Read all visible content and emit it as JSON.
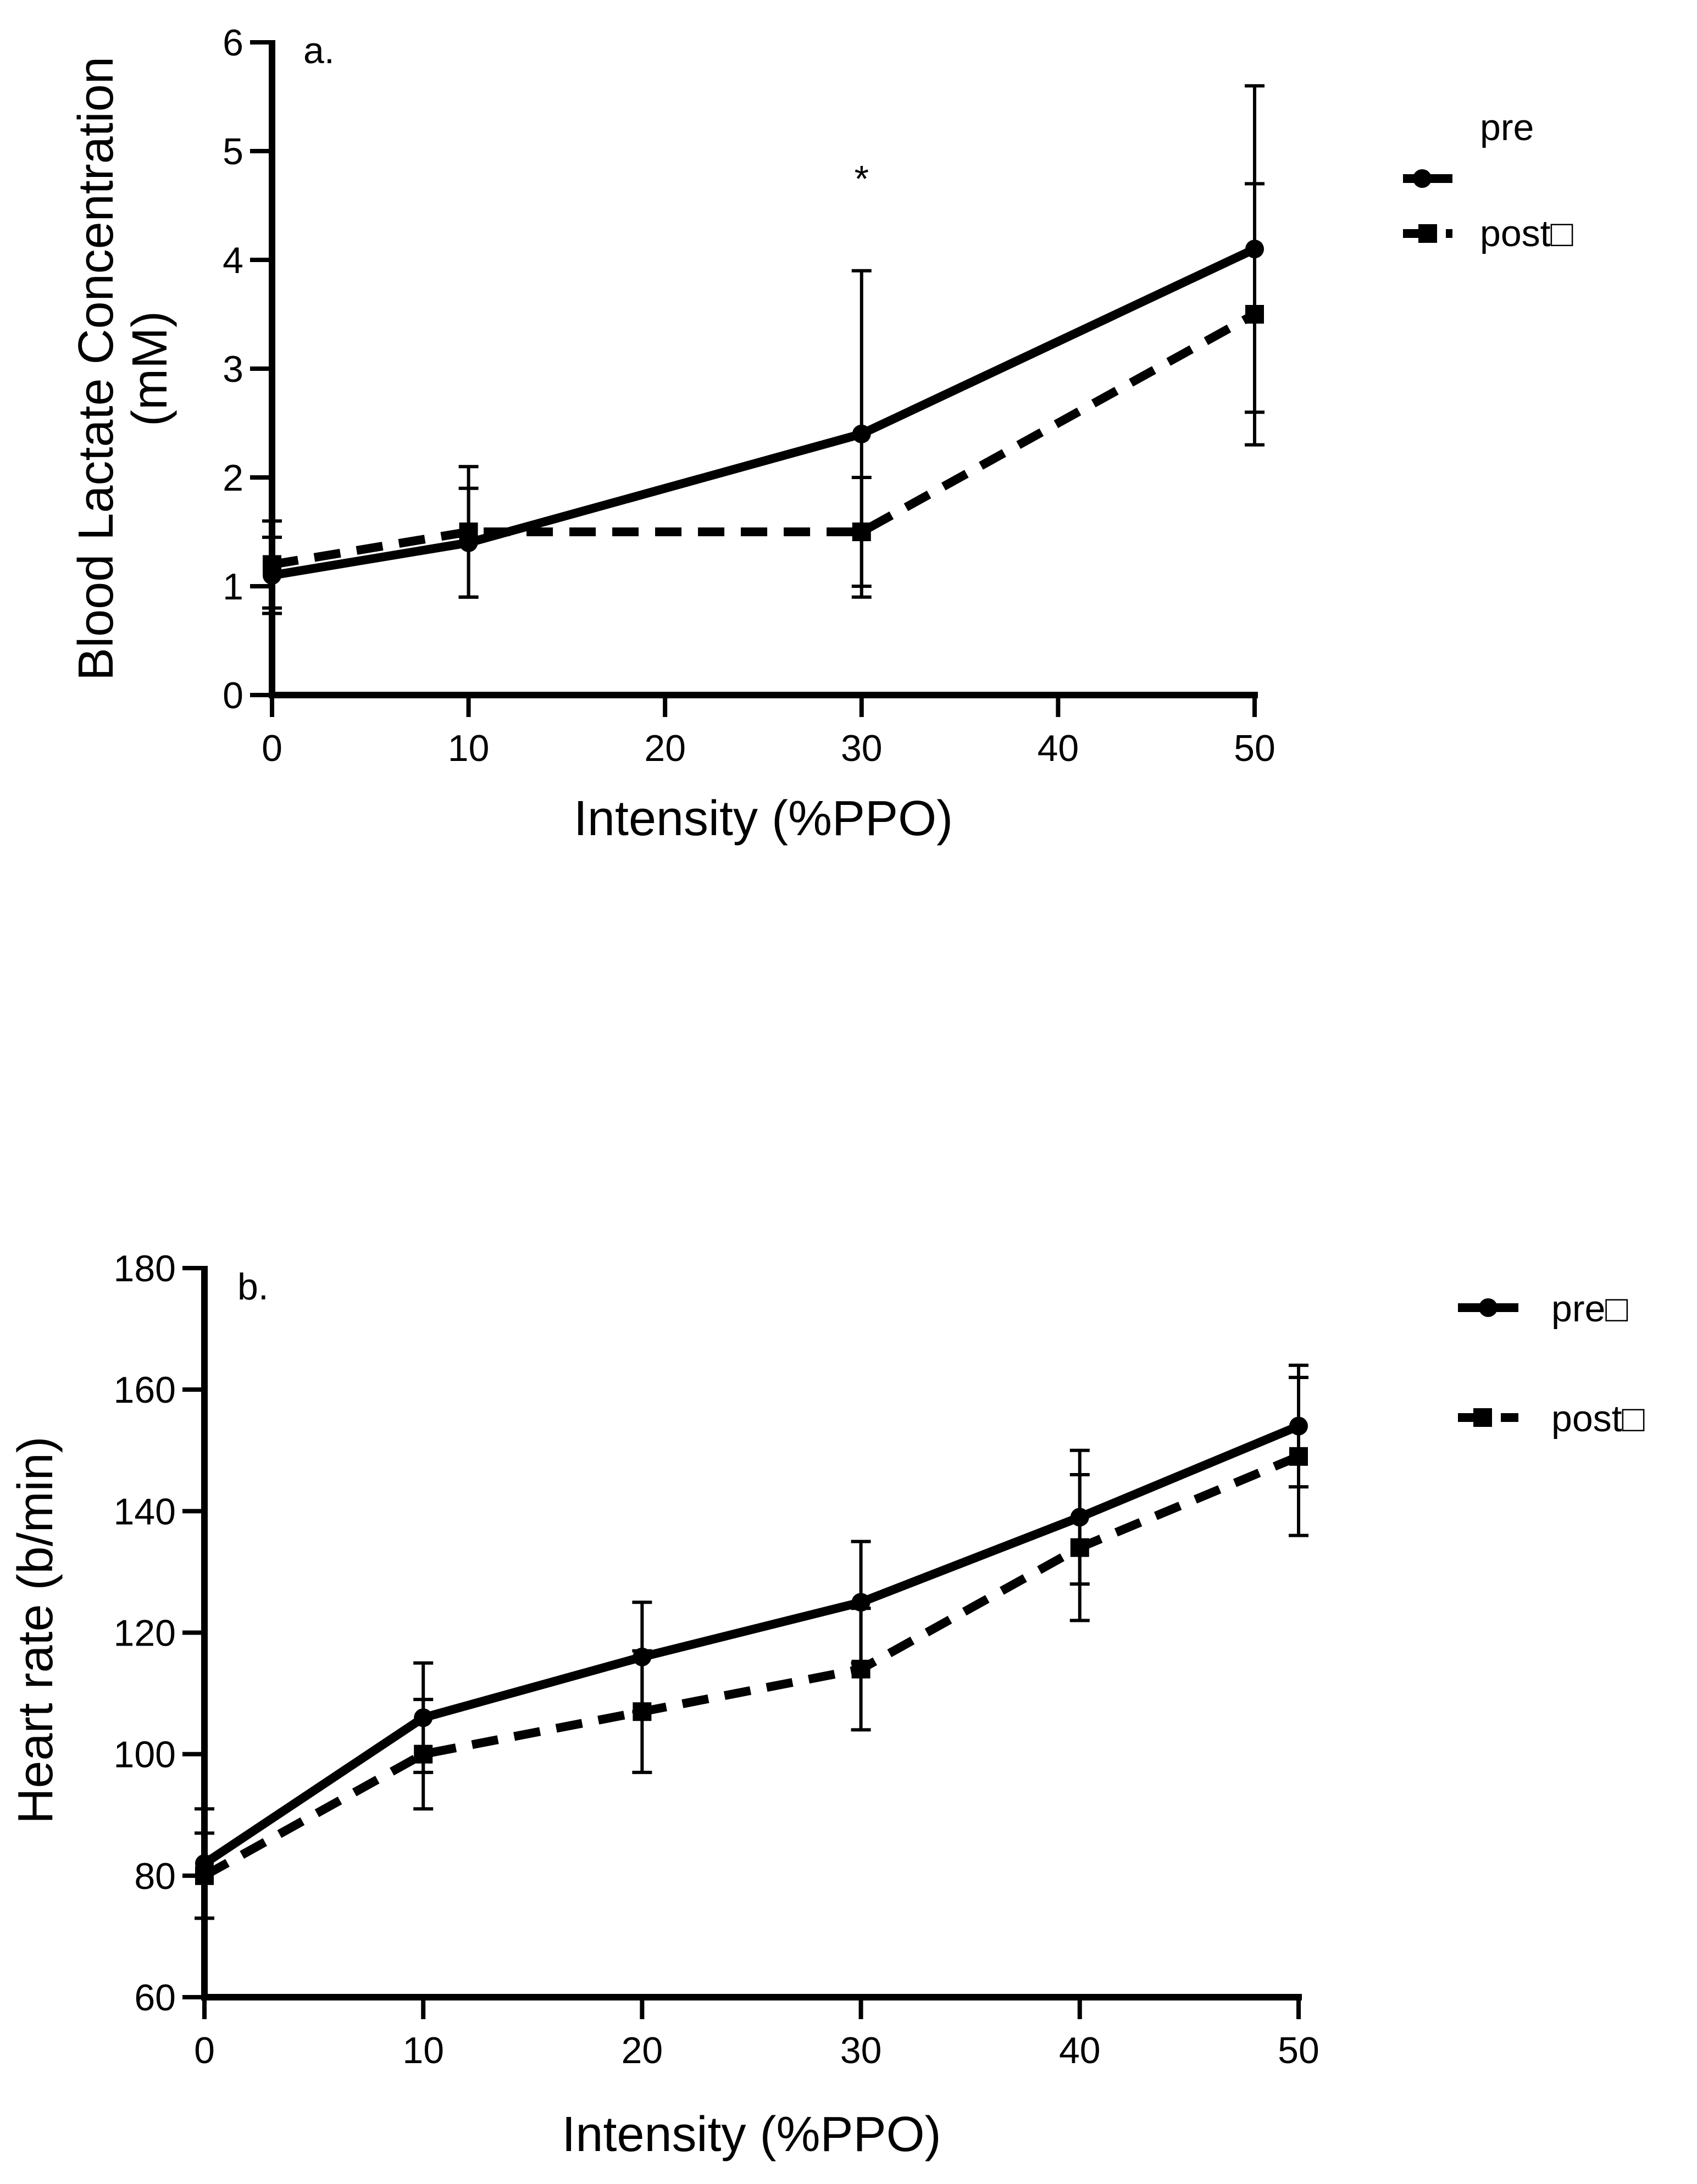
{
  "chart_data": [
    {
      "type": "line",
      "panel_label": "a.",
      "title": "",
      "xlabel": "Intensity (%PPO)",
      "ylabel": "Blood Lactate Concentration (mM)",
      "ylabel_lines": [
        "Blood Lactate Concentration",
        "(mM)"
      ],
      "xlim": [
        0,
        50
      ],
      "ylim": [
        0,
        6
      ],
      "xticks": [
        0,
        10,
        20,
        30,
        40,
        50
      ],
      "yticks": [
        0,
        1,
        2,
        3,
        4,
        5,
        6
      ],
      "grid": false,
      "legend_position": "right",
      "annotations": [
        {
          "text": "*",
          "x": 30,
          "y": 4.75
        }
      ],
      "series": [
        {
          "name": "pre",
          "legend_label": "pre",
          "marker": "circle",
          "dash": "solid",
          "x": [
            0,
            10,
            30,
            50
          ],
          "values": [
            1.1,
            1.4,
            2.4,
            4.1
          ],
          "error": [
            0.35,
            0.5,
            1.5,
            1.5
          ]
        },
        {
          "name": "post",
          "legend_label": "post□",
          "marker": "square",
          "dash": "dashed",
          "x": [
            0,
            10,
            30,
            50
          ],
          "values": [
            1.2,
            1.5,
            1.5,
            3.5
          ],
          "error": [
            0.4,
            0.6,
            0.5,
            1.2
          ]
        }
      ]
    },
    {
      "type": "line",
      "panel_label": "b.",
      "title": "",
      "xlabel": "Intensity (%PPO)",
      "ylabel": "Heart rate (b/min)",
      "ylabel_lines": [
        "Heart rate (b/min)"
      ],
      "xlim": [
        0,
        50
      ],
      "ylim": [
        60,
        180
      ],
      "xticks": [
        0,
        10,
        20,
        30,
        40,
        50
      ],
      "yticks": [
        60,
        80,
        100,
        120,
        140,
        160,
        180
      ],
      "grid": false,
      "legend_position": "right",
      "annotations": [],
      "series": [
        {
          "name": "pre",
          "legend_label": "pre□",
          "marker": "circle",
          "dash": "solid",
          "x": [
            0,
            10,
            20,
            30,
            40,
            50
          ],
          "values": [
            82,
            106,
            116,
            125,
            139,
            154
          ],
          "error": [
            9,
            9,
            9,
            10,
            11,
            10
          ]
        },
        {
          "name": "post",
          "legend_label": "post□",
          "marker": "square",
          "dash": "dashed",
          "x": [
            0,
            10,
            20,
            30,
            40,
            50
          ],
          "values": [
            80,
            100,
            107,
            114,
            134,
            149
          ],
          "error": [
            7,
            9,
            10,
            10,
            12,
            13
          ]
        }
      ]
    }
  ]
}
